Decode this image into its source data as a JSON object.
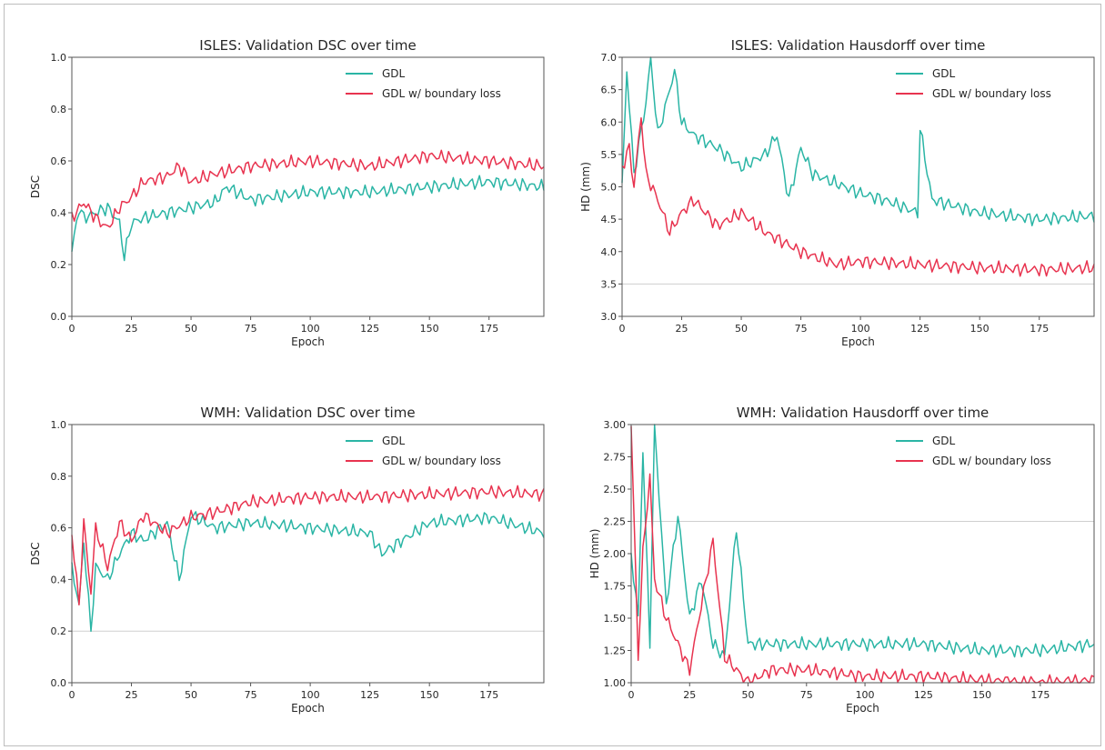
{
  "colors": {
    "gdl": "#2ab5a5",
    "boundary": "#e8334f",
    "axes": "#555555",
    "refline": "#cfcfcf"
  },
  "chart_data": [
    {
      "type": "line",
      "title": "ISLES: Validation DSC over time",
      "xlabel": "Epoch",
      "ylabel": "DSC",
      "xlim": [
        0,
        198
      ],
      "ylim": [
        0.0,
        1.0
      ],
      "xticks": [
        0,
        25,
        50,
        75,
        100,
        125,
        150,
        175
      ],
      "yticks": [
        0.0,
        0.2,
        0.4,
        0.6,
        0.8,
        1.0
      ],
      "ytick_labels": [
        "0.0",
        "0.2",
        "0.4",
        "0.6",
        "0.8",
        "1.0"
      ],
      "grid": false,
      "legend": "top-right",
      "series": [
        {
          "name": "GDL",
          "color": "#2ab5a5",
          "x": [
            0,
            3,
            5,
            10,
            15,
            20,
            22,
            25,
            30,
            40,
            50,
            60,
            65,
            75,
            100,
            125,
            150,
            175,
            198
          ],
          "y": [
            0.25,
            0.42,
            0.38,
            0.4,
            0.42,
            0.36,
            0.23,
            0.36,
            0.38,
            0.4,
            0.42,
            0.44,
            0.5,
            0.45,
            0.48,
            0.48,
            0.5,
            0.52,
            0.5
          ]
        },
        {
          "name": "GDL w/ boundary loss",
          "color": "#e8334f",
          "x": [
            0,
            5,
            10,
            15,
            20,
            25,
            30,
            40,
            45,
            50,
            60,
            75,
            100,
            125,
            150,
            175,
            198
          ],
          "y": [
            0.38,
            0.44,
            0.38,
            0.34,
            0.42,
            0.46,
            0.52,
            0.54,
            0.58,
            0.52,
            0.55,
            0.58,
            0.6,
            0.58,
            0.62,
            0.6,
            0.58
          ]
        }
      ]
    },
    {
      "type": "line",
      "title": "ISLES: Validation Hausdorff over time",
      "xlabel": "Epoch",
      "ylabel": "HD (mm)",
      "xlim": [
        0,
        198
      ],
      "ylim": [
        3.0,
        7.0
      ],
      "xticks": [
        0,
        25,
        50,
        75,
        100,
        125,
        150,
        175
      ],
      "yticks": [
        3.0,
        3.5,
        4.0,
        4.5,
        5.0,
        5.5,
        6.0,
        6.5,
        7.0
      ],
      "ytick_labels": [
        "3.0",
        "3.5",
        "4.0",
        "4.5",
        "5.0",
        "5.5",
        "6.0",
        "6.5",
        "7.0"
      ],
      "reference_line": 3.5,
      "grid": false,
      "legend": "top-right",
      "series": [
        {
          "name": "GDL",
          "color": "#2ab5a5",
          "x": [
            0,
            2,
            5,
            10,
            12,
            15,
            20,
            22,
            25,
            30,
            40,
            50,
            60,
            65,
            70,
            75,
            80,
            100,
            110,
            124,
            125,
            130,
            150,
            175,
            198
          ],
          "y": [
            5.0,
            6.8,
            5.2,
            6.3,
            7.0,
            5.8,
            6.5,
            6.8,
            6.0,
            5.8,
            5.6,
            5.3,
            5.5,
            5.8,
            4.8,
            5.6,
            5.2,
            4.9,
            4.8,
            4.6,
            5.9,
            4.8,
            4.6,
            4.5,
            4.55
          ]
        },
        {
          "name": "GDL w/ boundary loss",
          "color": "#e8334f",
          "x": [
            0,
            3,
            5,
            8,
            10,
            15,
            20,
            25,
            30,
            40,
            50,
            60,
            75,
            90,
            100,
            125,
            150,
            175,
            198
          ],
          "y": [
            5.3,
            5.6,
            5.0,
            6.1,
            5.2,
            4.8,
            4.3,
            4.6,
            4.8,
            4.4,
            4.6,
            4.3,
            4.0,
            3.8,
            3.85,
            3.8,
            3.75,
            3.72,
            3.75
          ]
        }
      ]
    },
    {
      "type": "line",
      "title": "WMH: Validation DSC over time",
      "xlabel": "Epoch",
      "ylabel": "DSC",
      "xlim": [
        0,
        198
      ],
      "ylim": [
        0.0,
        1.0
      ],
      "xticks": [
        0,
        25,
        50,
        75,
        100,
        125,
        150,
        175
      ],
      "yticks": [
        0.0,
        0.2,
        0.4,
        0.6,
        0.8,
        1.0
      ],
      "ytick_labels": [
        "0.0",
        "0.2",
        "0.4",
        "0.6",
        "0.8",
        "1.0"
      ],
      "reference_line": 0.2,
      "grid": false,
      "legend": "top-right",
      "series": [
        {
          "name": "GDL",
          "color": "#2ab5a5",
          "x": [
            0,
            3,
            5,
            8,
            10,
            15,
            20,
            25,
            30,
            40,
            45,
            50,
            60,
            75,
            100,
            125,
            130,
            150,
            175,
            198
          ],
          "y": [
            0.45,
            0.3,
            0.55,
            0.2,
            0.45,
            0.4,
            0.5,
            0.58,
            0.55,
            0.62,
            0.4,
            0.65,
            0.6,
            0.62,
            0.6,
            0.58,
            0.5,
            0.62,
            0.64,
            0.58
          ]
        },
        {
          "name": "GDL w/ boundary loss",
          "color": "#e8334f",
          "x": [
            0,
            3,
            5,
            8,
            10,
            15,
            20,
            25,
            30,
            40,
            50,
            60,
            75,
            100,
            125,
            150,
            175,
            198
          ],
          "y": [
            0.58,
            0.3,
            0.62,
            0.35,
            0.6,
            0.45,
            0.62,
            0.55,
            0.65,
            0.58,
            0.64,
            0.66,
            0.7,
            0.72,
            0.72,
            0.73,
            0.74,
            0.73
          ]
        }
      ]
    },
    {
      "type": "line",
      "title": "WMH: Validation Hausdorff over time",
      "xlabel": "Epoch",
      "ylabel": "HD (mm)",
      "xlim": [
        0,
        198
      ],
      "ylim": [
        1.0,
        3.0
      ],
      "xticks": [
        0,
        25,
        50,
        75,
        100,
        125,
        150,
        175
      ],
      "xtick_labels": [
        "0",
        "25",
        "50",
        "75",
        "100",
        "125",
        "150",
        "175"
      ],
      "yticks": [
        1.0,
        1.25,
        1.5,
        1.75,
        2.0,
        2.25,
        2.5,
        2.75,
        3.0
      ],
      "ytick_labels": [
        "1.00",
        "1.25",
        "1.50",
        "1.75",
        "2.00",
        "2.25",
        "2.50",
        "2.75",
        "3.00"
      ],
      "reference_line": 2.25,
      "grid": false,
      "legend": "top-right",
      "series": [
        {
          "name": "GDL",
          "color": "#2ab5a5",
          "x": [
            0,
            3,
            5,
            8,
            10,
            15,
            20,
            25,
            30,
            35,
            40,
            45,
            50,
            75,
            100,
            125,
            150,
            175,
            198
          ],
          "y": [
            2.0,
            1.5,
            2.8,
            1.3,
            3.0,
            1.6,
            2.3,
            1.5,
            1.8,
            1.3,
            1.2,
            2.2,
            1.3,
            1.3,
            1.3,
            1.3,
            1.25,
            1.25,
            1.3
          ]
        },
        {
          "name": "GDL w/ boundary loss",
          "color": "#e8334f",
          "x": [
            0,
            3,
            5,
            8,
            10,
            15,
            20,
            25,
            30,
            35,
            40,
            45,
            50,
            60,
            75,
            100,
            125,
            150,
            175,
            198
          ],
          "y": [
            3.0,
            1.2,
            2.0,
            2.6,
            1.8,
            1.5,
            1.3,
            1.1,
            1.6,
            2.1,
            1.2,
            1.1,
            1.0,
            1.1,
            1.1,
            1.05,
            1.05,
            1.02,
            1.0,
            1.02
          ]
        }
      ]
    }
  ]
}
